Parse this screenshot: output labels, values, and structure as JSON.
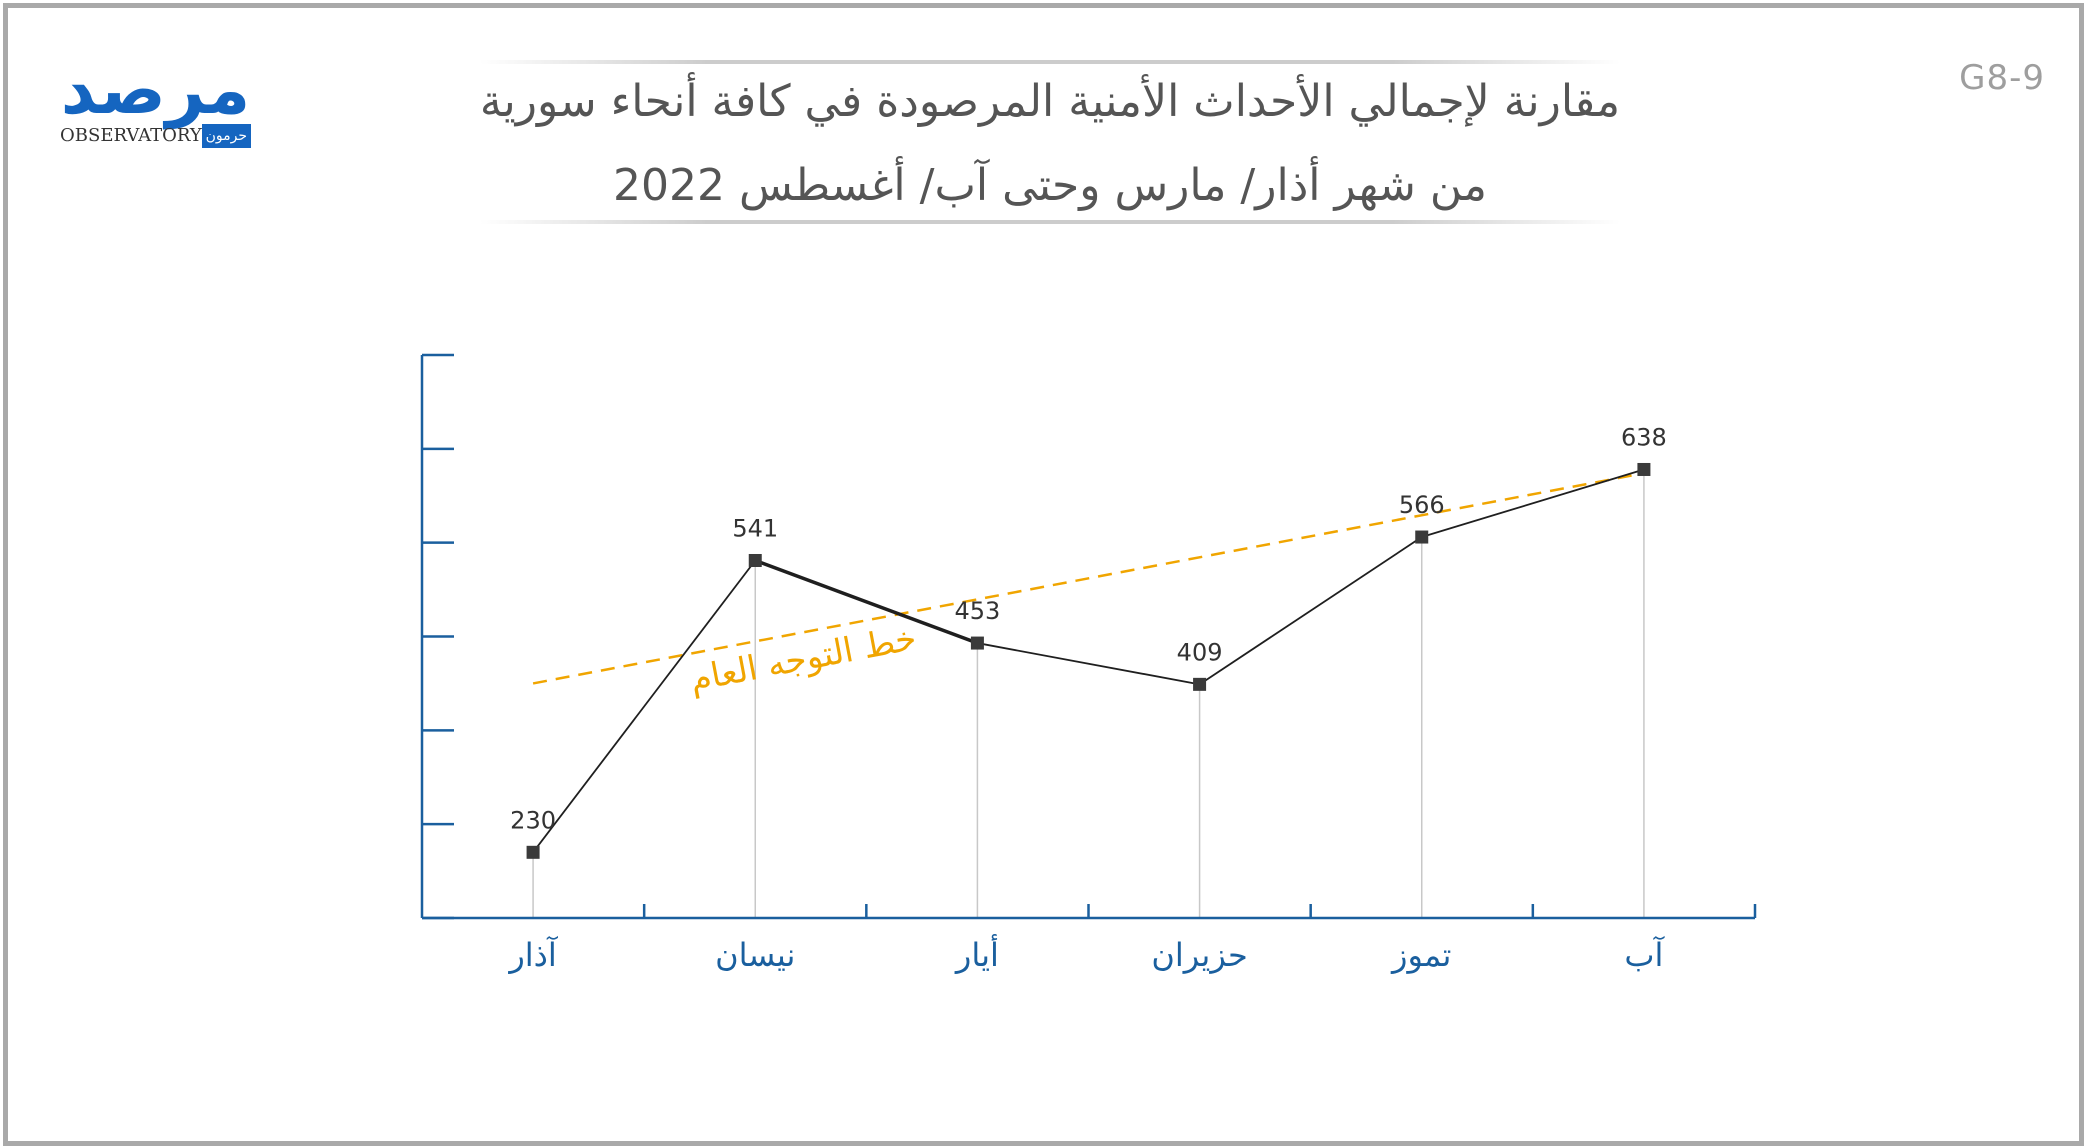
{
  "header": {
    "code": "G8-9",
    "title": "مقارنة لإجمالي الأحداث الأمنية المرصودة في كافة أنحاء سورية",
    "subtitle": "من شهر أذار/ مارس وحتى آب/ أغسطس 2022"
  },
  "logo": {
    "arabic": "مرصد",
    "latin": "OBSERVATORY",
    "arabic_small": "حرمون"
  },
  "colors": {
    "axis": "#1a5f9e",
    "series": "#1f1f1f",
    "marker": "#3a3a3a",
    "trend": "#f0a500",
    "guide": "#c8c8c8",
    "category_text": "#1a5f9e"
  },
  "chart_data": {
    "type": "line",
    "categories": [
      "آذار",
      "نيسان",
      "أيار",
      "حزيران",
      "تموز",
      "آب"
    ],
    "values": [
      230,
      541,
      453,
      409,
      566,
      638
    ],
    "data_labels": [
      "230",
      "541",
      "453",
      "409",
      "566",
      "638"
    ],
    "trend_label": "خط التوجه العام",
    "trend_line": {
      "start": 410,
      "end": 634
    },
    "ylim": [
      160,
      760
    ],
    "y_axis_ticks": 6,
    "grid": false,
    "legend": "none"
  }
}
